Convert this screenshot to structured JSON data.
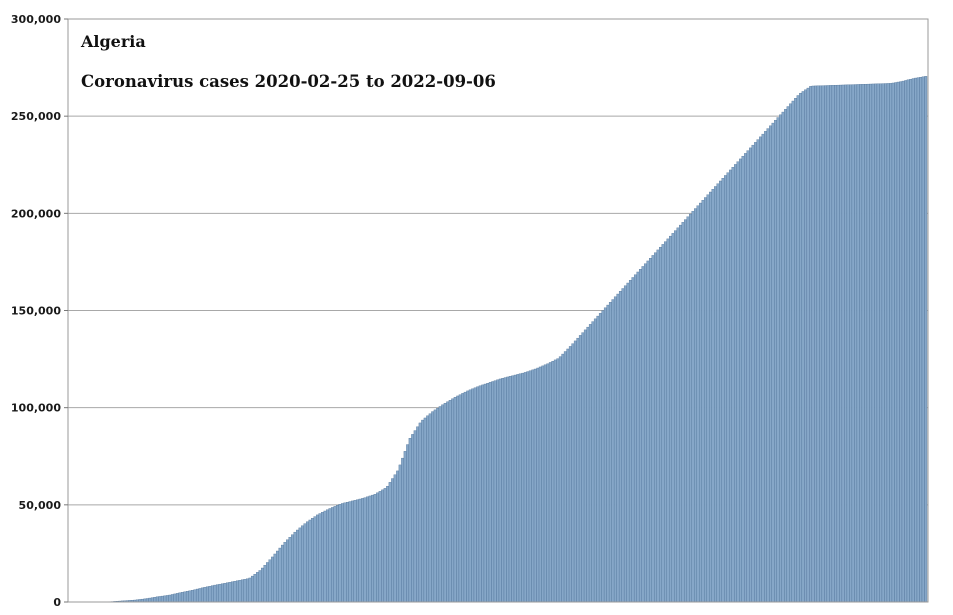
{
  "chart_data": {
    "type": "bar",
    "country": "Algeria",
    "title": "Coronavirus cases 2020-02-25 to 2022-09-06",
    "xlabel": "",
    "ylabel": "",
    "date_range": [
      "2020-02-25",
      "2022-09-06"
    ],
    "ylim": [
      0,
      300000
    ],
    "yticks": [
      0,
      50000,
      100000,
      150000,
      200000,
      250000,
      300000
    ],
    "ytick_labels": [
      "0",
      "50,000",
      "100,000",
      "150,000",
      "200,000",
      "250,000",
      "300,000"
    ],
    "grid": true,
    "legend": "none",
    "bar_color": "#86a7c8",
    "bar_edge_color": "#4b6f95",
    "series": [
      {
        "values": [
          1,
          5,
          40,
          200,
          600,
          1000,
          1700,
          2700,
          3500,
          4800,
          6000,
          7400,
          8700,
          9800,
          11000,
          12100,
          16500,
          23000,
          30000,
          36000,
          41000,
          45000,
          48000,
          50500,
          52000,
          53500,
          55500,
          59000,
          68000,
          84000,
          93000,
          98000,
          102000,
          105500,
          108500,
          111000,
          113000,
          115000,
          116500,
          118000,
          120000,
          122500,
          125500,
          131500,
          138000,
          144500,
          151000,
          157500,
          164000,
          170500,
          177000,
          183500,
          190000,
          196500,
          203000,
          209500,
          216000,
          222500,
          229000,
          235500,
          242000,
          248500,
          255000,
          261500,
          265500,
          265700,
          265900,
          266100,
          266300,
          266500,
          266700,
          266900,
          268000,
          269500,
          270500
        ]
      }
    ]
  }
}
